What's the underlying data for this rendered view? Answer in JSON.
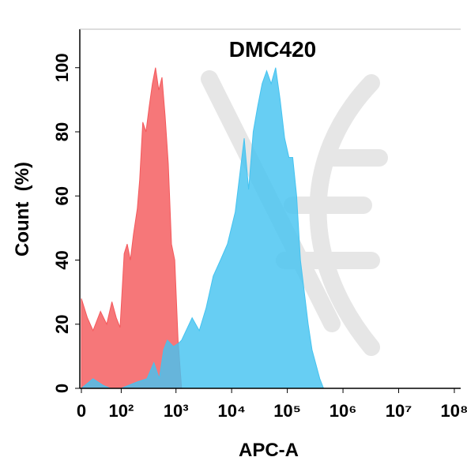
{
  "chart_data": {
    "type": "area",
    "title": "DMC420",
    "x_label": "APC-A",
    "y_label": "Count  (%)",
    "xscale": "asinh",
    "xlim": [
      0,
      130000000
    ],
    "xticks": [
      0,
      {
        "value": 100,
        "label": "10²"
      },
      {
        "value": 1000,
        "label": "10³"
      },
      {
        "value": 10000,
        "label": "10⁴"
      },
      {
        "value": 100000,
        "label": "10⁵"
      },
      {
        "value": 1000000,
        "label": "10⁶"
      },
      {
        "value": 10000000,
        "label": "10⁷"
      },
      {
        "value": 100000000,
        "label": "10⁸"
      }
    ],
    "ylim": [
      0,
      112
    ],
    "yticks": [
      0,
      20,
      40,
      60,
      80,
      100
    ],
    "series": [
      {
        "color": "#f4595c",
        "x": [
          0,
          10,
          20,
          35,
          50,
          65,
          80,
          95,
          114,
          130,
          149,
          170,
          200,
          221,
          252,
          288,
          330,
          376,
          428,
          490,
          560,
          637,
          727,
          830,
          950,
          1090,
          1260
        ],
        "values": [
          28,
          22,
          18,
          24,
          20,
          27,
          22,
          19,
          42,
          45,
          40,
          48,
          56,
          65,
          83,
          80,
          88,
          95,
          100,
          93,
          97,
          85,
          70,
          45,
          40,
          15,
          0
        ]
      },
      {
        "color": "#45c3f0",
        "x": [
          0,
          20,
          40,
          60,
          100,
          200,
          300,
          400,
          500,
          600,
          700,
          900,
          1100,
          1260,
          1950,
          2620,
          3470,
          4670,
          6300,
          8400,
          11600,
          16800,
          20200,
          24400,
          29400,
          35300,
          42600,
          51300,
          61700,
          74300,
          89500,
          107000,
          125000,
          147000,
          172000,
          202000,
          237000,
          278000,
          383000,
          448000
        ],
        "values": [
          0,
          3,
          1,
          0,
          0,
          2,
          3,
          8,
          3,
          12,
          15,
          13,
          14,
          15,
          22,
          18,
          25,
          35,
          40,
          45,
          55,
          78,
          62,
          80,
          88,
          95,
          99,
          95,
          100,
          90,
          78,
          72,
          72,
          60,
          40,
          30,
          20,
          12,
          3,
          0
        ]
      }
    ]
  }
}
